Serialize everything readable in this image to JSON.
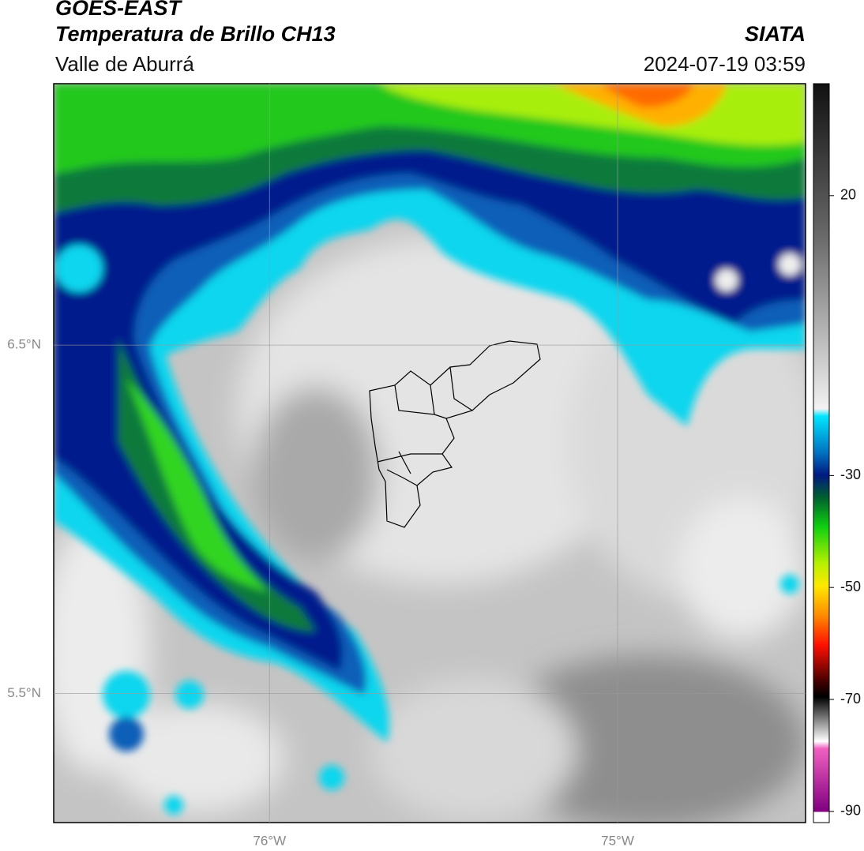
{
  "header": {
    "title": "GOES-EAST",
    "subtitle": "Temperatura de Brillo CH13",
    "region": "Valle de Aburrá",
    "source": "SIATA",
    "datetime": "2024-07-19 03:59"
  },
  "map": {
    "xlim": [
      -76.62,
      -74.46
    ],
    "ylim": [
      5.13,
      7.25
    ],
    "xticks": [
      {
        "value": -76,
        "label": "76°W"
      },
      {
        "value": -75,
        "label": "75°W"
      }
    ],
    "yticks": [
      {
        "value": 6.5,
        "label": "6.5°N"
      },
      {
        "value": 5.5,
        "label": "5.5°N"
      }
    ],
    "grid": true
  },
  "colorbar": {
    "lim": [
      -92,
      40
    ],
    "ticks": [
      20,
      -30,
      -50,
      -70,
      -90
    ]
  }
}
